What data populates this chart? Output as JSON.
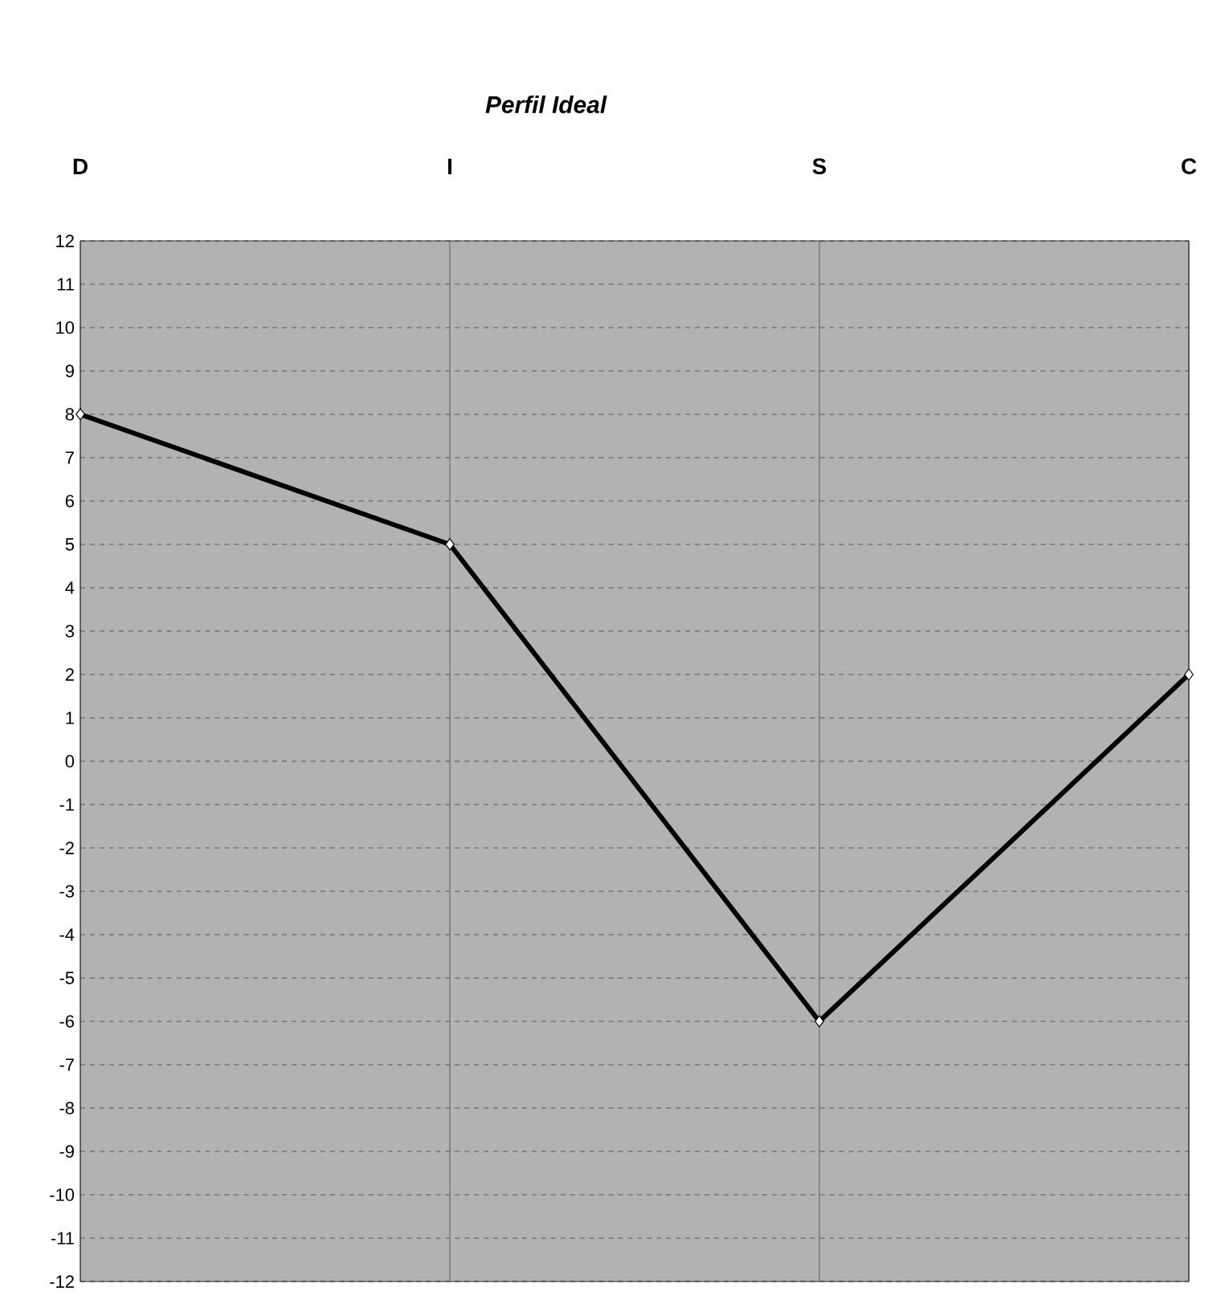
{
  "chart_data": {
    "type": "line",
    "title": "Perfil Ideal",
    "categories": [
      "D",
      "I",
      "S",
      "C"
    ],
    "series": [
      {
        "color": "#000000",
        "values": [
          8,
          5,
          -6,
          2
        ]
      }
    ],
    "ylim": [
      -12,
      12
    ],
    "yticks": [
      -12,
      -11,
      -10,
      -9,
      -8,
      -7,
      -6,
      -5,
      -4,
      -3,
      -2,
      -1,
      0,
      1,
      2,
      3,
      4,
      5,
      6,
      7,
      8,
      9,
      10,
      11,
      12
    ],
    "grid": true,
    "marker": "diamond",
    "line_style": "solid"
  }
}
